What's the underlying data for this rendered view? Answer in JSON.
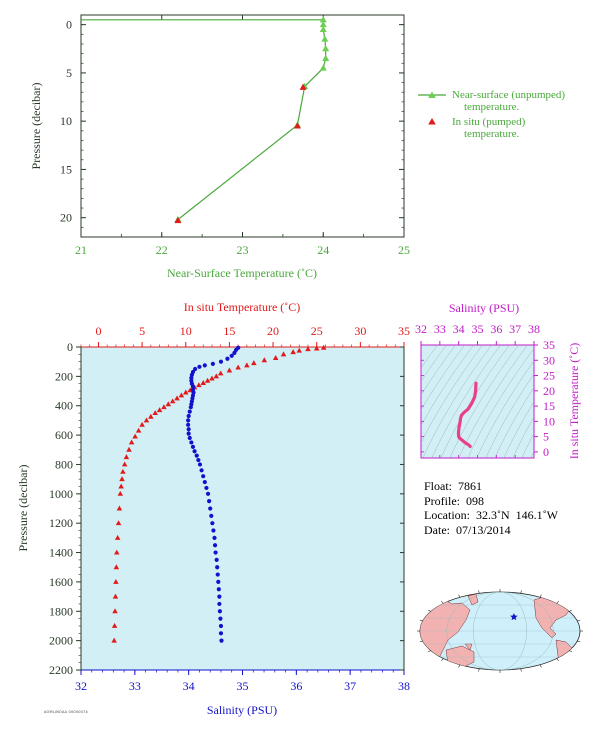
{
  "colors": {
    "green": "#4aa83c",
    "green_point": "#6ccf54",
    "red": "#e11b1b",
    "blue": "#1212cc",
    "magenta": "#c21cc8",
    "pink_profile": "#e8408a",
    "plot_bg": "#d3eff6",
    "axis_dark": "#2a3a2a"
  },
  "chart_data": [
    {
      "id": "near-surface",
      "type": "line",
      "xlabel": "Near-Surface Temperature (˚C)",
      "ylabel": "Pressure (decibar)",
      "xlim": [
        21,
        25
      ],
      "ylim": [
        22,
        -1
      ],
      "x_ticks": [
        "21",
        "22",
        "23",
        "24",
        "25"
      ],
      "y_ticks": [
        "0",
        "5",
        "10",
        "15",
        "20"
      ],
      "series": [
        {
          "name": "Near-surface (unpumped) temperature.",
          "marker": "triangle",
          "points": [
            [
              21.0,
              -0.5
            ],
            [
              22.5,
              -0.5
            ],
            [
              24.0,
              -0.5
            ],
            [
              24.0,
              0.0
            ],
            [
              24.0,
              0.5
            ],
            [
              24.02,
              1.5
            ],
            [
              24.03,
              2.5
            ],
            [
              24.03,
              3.5
            ],
            [
              24.0,
              4.5
            ],
            [
              23.77,
              6.4
            ],
            [
              23.68,
              10.4
            ],
            [
              22.2,
              20.2
            ]
          ]
        },
        {
          "name": "In situ (pumped) temperature.",
          "marker": "triangle",
          "points": [
            [
              23.75,
              6.5
            ],
            [
              23.68,
              10.5
            ],
            [
              22.2,
              20.3
            ]
          ]
        }
      ],
      "legend": "right"
    },
    {
      "id": "profile",
      "type": "scatter",
      "xlabel_top": "In situ Temperature (˚C)",
      "xlabel_bottom": "Salinity (PSU)",
      "ylabel": "Pressure (decibar)",
      "temp_lim": [
        -2,
        35
      ],
      "sal_lim": [
        32,
        38
      ],
      "ylim": [
        2200,
        0
      ],
      "temp_ticks": [
        "0",
        "5",
        "10",
        "15",
        "20",
        "25",
        "30",
        "35"
      ],
      "sal_ticks": [
        "32",
        "33",
        "34",
        "35",
        "36",
        "37",
        "38"
      ],
      "y_ticks": [
        "0",
        "200",
        "400",
        "600",
        "800",
        "1000",
        "1200",
        "1400",
        "1600",
        "1800",
        "2000",
        "2200"
      ],
      "temperature": [
        [
          25.8,
          5
        ],
        [
          25.0,
          10
        ],
        [
          24.0,
          15
        ],
        [
          23.0,
          25
        ],
        [
          22.3,
          35
        ],
        [
          21.2,
          50
        ],
        [
          20.3,
          75
        ],
        [
          19.0,
          90
        ],
        [
          17.8,
          110
        ],
        [
          17.0,
          125
        ],
        [
          16.0,
          140
        ],
        [
          15.0,
          160
        ],
        [
          14.0,
          180
        ],
        [
          13.5,
          200
        ],
        [
          13.0,
          215
        ],
        [
          12.5,
          230
        ],
        [
          12.0,
          245
        ],
        [
          11.5,
          260
        ],
        [
          11.0,
          275
        ],
        [
          10.5,
          295
        ],
        [
          10.0,
          310
        ],
        [
          9.5,
          330
        ],
        [
          9.0,
          350
        ],
        [
          8.5,
          370
        ],
        [
          8.0,
          390
        ],
        [
          7.5,
          410
        ],
        [
          7.0,
          430
        ],
        [
          6.5,
          450
        ],
        [
          6.0,
          475
        ],
        [
          5.5,
          500
        ],
        [
          5.0,
          530
        ],
        [
          4.6,
          570
        ],
        [
          4.2,
          610
        ],
        [
          3.8,
          650
        ],
        [
          3.5,
          700
        ],
        [
          3.2,
          750
        ],
        [
          3.0,
          800
        ],
        [
          2.8,
          850
        ],
        [
          2.7,
          900
        ],
        [
          2.6,
          950
        ],
        [
          2.5,
          1000
        ],
        [
          2.4,
          1100
        ],
        [
          2.3,
          1200
        ],
        [
          2.2,
          1300
        ],
        [
          2.1,
          1400
        ],
        [
          2.05,
          1500
        ],
        [
          2.0,
          1600
        ],
        [
          1.95,
          1700
        ],
        [
          1.9,
          1800
        ],
        [
          1.85,
          1900
        ],
        [
          1.8,
          2000
        ]
      ],
      "salinity": [
        [
          34.92,
          5
        ],
        [
          34.88,
          20
        ],
        [
          34.85,
          40
        ],
        [
          34.8,
          60
        ],
        [
          34.72,
          80
        ],
        [
          34.6,
          100
        ],
        [
          34.45,
          115
        ],
        [
          34.3,
          125
        ],
        [
          34.2,
          135
        ],
        [
          34.12,
          150
        ],
        [
          34.08,
          170
        ],
        [
          34.06,
          190
        ],
        [
          34.05,
          210
        ],
        [
          34.05,
          230
        ],
        [
          34.06,
          250
        ],
        [
          34.08,
          270
        ],
        [
          34.08,
          290
        ],
        [
          34.09,
          310
        ],
        [
          34.08,
          330
        ],
        [
          34.07,
          350
        ],
        [
          34.06,
          370
        ],
        [
          34.05,
          390
        ],
        [
          34.04,
          410
        ],
        [
          34.02,
          440
        ],
        [
          34.0,
          470
        ],
        [
          33.99,
          500
        ],
        [
          33.99,
          530
        ],
        [
          34.0,
          560
        ],
        [
          34.0,
          590
        ],
        [
          34.02,
          620
        ],
        [
          34.05,
          650
        ],
        [
          34.08,
          680
        ],
        [
          34.11,
          710
        ],
        [
          34.15,
          740
        ],
        [
          34.18,
          770
        ],
        [
          34.21,
          800
        ],
        [
          34.24,
          840
        ],
        [
          34.27,
          880
        ],
        [
          34.3,
          920
        ],
        [
          34.33,
          960
        ],
        [
          34.36,
          1000
        ],
        [
          34.38,
          1050
        ],
        [
          34.4,
          1100
        ],
        [
          34.42,
          1150
        ],
        [
          34.44,
          1200
        ],
        [
          34.46,
          1250
        ],
        [
          34.48,
          1300
        ],
        [
          34.49,
          1350
        ],
        [
          34.5,
          1400
        ],
        [
          34.52,
          1450
        ],
        [
          34.53,
          1500
        ],
        [
          34.54,
          1550
        ],
        [
          34.55,
          1600
        ],
        [
          34.56,
          1650
        ],
        [
          34.57,
          1700
        ],
        [
          34.57,
          1750
        ],
        [
          34.58,
          1800
        ],
        [
          34.59,
          1850
        ],
        [
          34.6,
          1900
        ],
        [
          34.6,
          1950
        ],
        [
          34.61,
          2000
        ]
      ]
    },
    {
      "id": "ts-diagram",
      "type": "scatter",
      "xlabel": "Salinity (PSU)",
      "ylabel": "In situ Temperature (˚C)",
      "xlim": [
        32,
        38
      ],
      "ylim": [
        -2,
        35
      ],
      "x_ticks": [
        "32",
        "33",
        "34",
        "35",
        "36",
        "37",
        "38"
      ],
      "y_ticks": [
        "0",
        "5",
        "10",
        "15",
        "20",
        "25",
        "30",
        "35"
      ],
      "points": [
        [
          34.92,
          22.5
        ],
        [
          34.9,
          20.0
        ],
        [
          34.85,
          18.0
        ],
        [
          34.7,
          16.0
        ],
        [
          34.5,
          14.0
        ],
        [
          34.3,
          13.0
        ],
        [
          34.15,
          12.0
        ],
        [
          34.1,
          11.0
        ],
        [
          34.08,
          10.0
        ],
        [
          34.05,
          9.0
        ],
        [
          34.02,
          8.0
        ],
        [
          34.0,
          7.0
        ],
        [
          33.99,
          6.0
        ],
        [
          34.0,
          5.0
        ],
        [
          34.05,
          4.5
        ],
        [
          34.15,
          4.0
        ],
        [
          34.25,
          3.5
        ],
        [
          34.35,
          3.0
        ],
        [
          34.45,
          2.6
        ],
        [
          34.55,
          2.2
        ],
        [
          34.61,
          1.8
        ]
      ]
    },
    {
      "id": "location-map",
      "type": "scatter",
      "points": [
        [
          146.1,
          32.3
        ]
      ]
    }
  ],
  "float_info": {
    "float": "Float:  7861",
    "profile": "Profile:  098",
    "location": "Location:  32.3˚N  146.1˚W",
    "date": "Date:  07/13/2014"
  },
  "footer_text": "AOML/NOAA 00000074"
}
